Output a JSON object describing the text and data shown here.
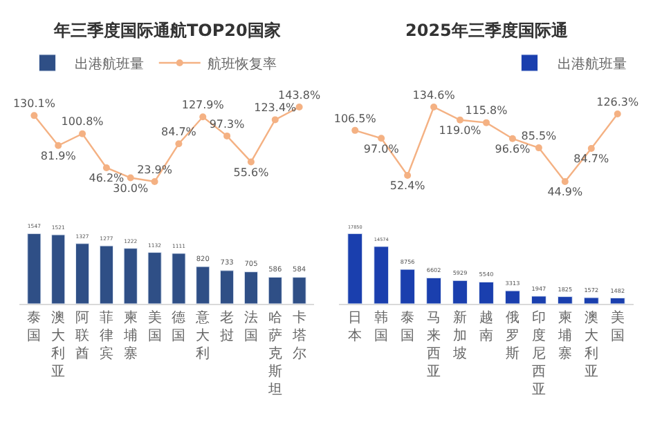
{
  "chart_data": [
    {
      "type": "line",
      "title": "年三季度国际通航TOP20国家",
      "categories": [
        "泰国",
        "澳大利亚",
        "阿联酋",
        "菲律宾",
        "柬埔寨",
        "美国",
        "德国",
        "意大利",
        "老挝",
        "法国",
        "哈萨克斯坦",
        "卡塔尔"
      ],
      "series": [
        {
          "name": "航班恢复率",
          "color": "#f4b183",
          "values": [
            130.1,
            81.9,
            100.8,
            46.2,
            30.0,
            23.9,
            84.7,
            127.9,
            97.3,
            55.6,
            123.4,
            143.8
          ],
          "value_labels": [
            "130.1%",
            "81.9%",
            "100.8%",
            "46.2%",
            "30.0%",
            "23.9%",
            "84.7%",
            "127.9%",
            "97.3%",
            "55.6%",
            "123.4%",
            "143.8%"
          ]
        }
      ],
      "data_labels": true,
      "marker": "circle",
      "legend": "top",
      "tick_labels": false
    },
    {
      "type": "bar",
      "categories": [
        "泰国",
        "澳大利亚",
        "阿联酋",
        "菲律宾",
        "柬埔寨",
        "美国",
        "德国",
        "意大利",
        "老挝",
        "法国",
        "哈萨克斯坦",
        "卡塔尔"
      ],
      "series": [
        {
          "name": "出港航班量",
          "type": "bar",
          "color": "#2f4f86",
          "values": [
            1547,
            1521,
            1327,
            1277,
            1222,
            1132,
            1111,
            820,
            733,
            705,
            586,
            584
          ]
        }
      ],
      "data_labels": true,
      "legend": "top left",
      "tick_labels": "x"
    },
    {
      "type": "line",
      "title": "2025年三季度国际通",
      "categories": [
        "日本",
        "韩国",
        "泰国",
        "马来西亚",
        "新加坡",
        "越南",
        "俄罗斯",
        "印度尼西亚",
        "柬埔寨",
        "澳大利亚",
        "美国"
      ],
      "series": [
        {
          "color": "#f4b183",
          "values": [
            106.5,
            97.0,
            52.4,
            134.6,
            119.0,
            115.8,
            96.6,
            85.5,
            44.9,
            84.7,
            126.3
          ],
          "value_labels": [
            "106.5%",
            "97.0%",
            "52.4%",
            "134.6%",
            "119.0%",
            "115.8%",
            "96.6%",
            "85.5%",
            "44.9%",
            "84.7%",
            "126.3%"
          ]
        }
      ],
      "data_labels": true,
      "marker": "circle",
      "tick_labels": false
    },
    {
      "type": "bar",
      "categories": [
        "日本",
        "韩国",
        "泰国",
        "马来西亚",
        "新加坡",
        "越南",
        "俄罗斯",
        "印度尼西亚",
        "柬埔寨",
        "澳大利亚",
        "美国"
      ],
      "series": [
        {
          "name": "出港航班量",
          "type": "bar",
          "color": "#1a3fae",
          "values": [
            17850,
            14574,
            8756,
            6602,
            5929,
            5540,
            3313,
            1947,
            1825,
            1572,
            1482
          ]
        }
      ],
      "data_labels": true,
      "legend": "top right",
      "tick_labels": "x"
    }
  ]
}
